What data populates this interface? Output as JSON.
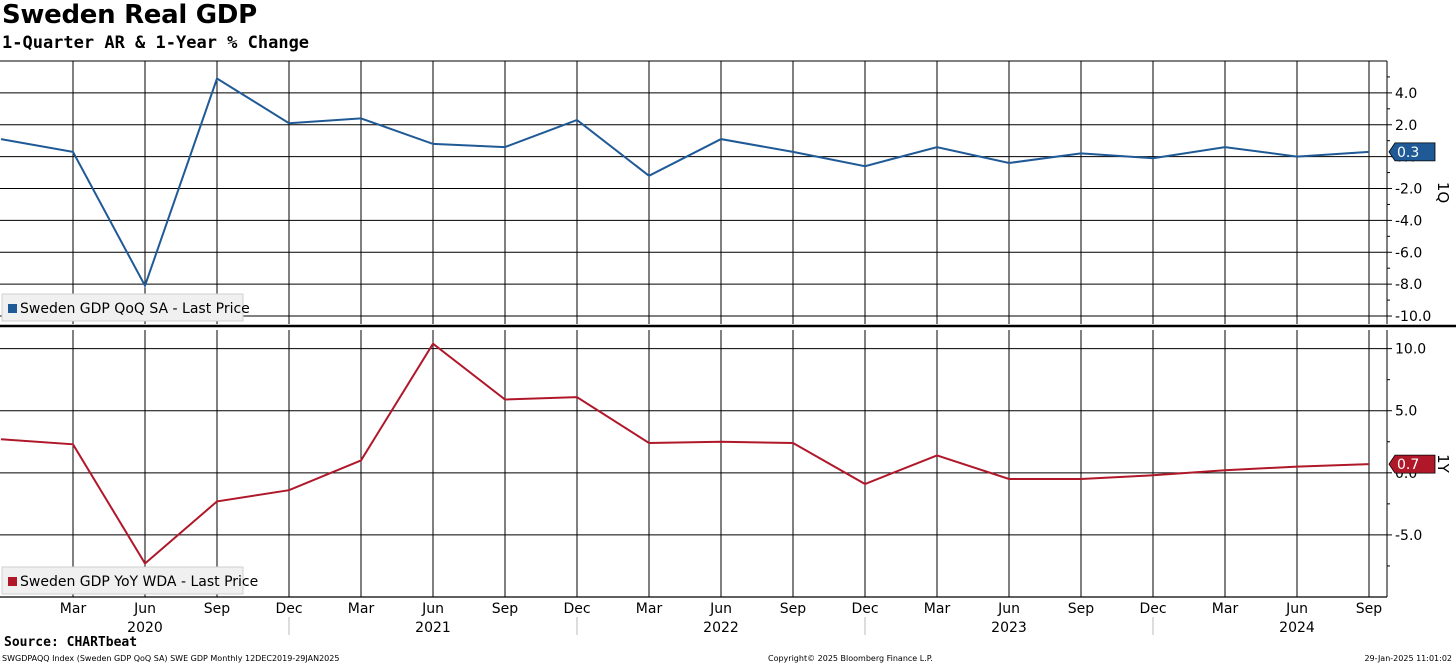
{
  "header": {
    "title": "Sweden Real GDP",
    "subtitle": "1-Quarter AR & 1-Year % Change"
  },
  "footer": {
    "source": "Source: CHARTbeat",
    "left": "SWGDPAQQ Index (Sweden GDP QoQ SA) SWE GDP  Monthly 12DEC2019-29JAN2025",
    "middle": "Copyright© 2025 Bloomberg Finance L.P.",
    "right": "29-Jan-2025 11:01:02"
  },
  "chart_data": [
    {
      "type": "line",
      "axis_title": "1Q",
      "legend": "Sweden GDP QoQ SA - Last Price",
      "legend_placement": "bottom-left",
      "x_month_labels": [
        "Mar",
        "Jun",
        "Sep",
        "Dec",
        "Mar",
        "Jun",
        "Sep",
        "Dec",
        "Mar",
        "Jun",
        "Sep",
        "Dec",
        "Mar",
        "Jun",
        "Sep",
        "Dec",
        "Mar",
        "Jun",
        "Sep"
      ],
      "x_year_labels": [
        "2020",
        "2021",
        "2022",
        "2023",
        "2024"
      ],
      "x": [
        "Dec 2019",
        "Mar 2020",
        "Jun 2020",
        "Sep 2020",
        "Dec 2020",
        "Mar 2021",
        "Jun 2021",
        "Sep 2021",
        "Dec 2021",
        "Mar 2022",
        "Jun 2022",
        "Sep 2022",
        "Dec 2022",
        "Mar 2023",
        "Jun 2023",
        "Sep 2023",
        "Dec 2023",
        "Mar 2024",
        "Jun 2024",
        "Sep 2024"
      ],
      "series": [
        {
          "name": "Sweden GDP QoQ SA - Last Price",
          "color": "#1f5a96",
          "values": [
            1.1,
            0.3,
            -8.1,
            4.9,
            2.1,
            2.4,
            0.8,
            0.6,
            2.3,
            -1.2,
            1.1,
            0.3,
            -0.6,
            0.6,
            -0.4,
            0.2,
            -0.1,
            0.6,
            0.0,
            0.3
          ]
        }
      ],
      "last_value_label": "0.3",
      "ylim": [
        -10.5,
        6.0
      ],
      "y_ticks": [
        4.0,
        2.0,
        0.0,
        -2.0,
        -4.0,
        -6.0,
        -8.0,
        -10.0
      ],
      "y_tick_labels": [
        "4.0",
        "2.0",
        "0.0",
        "-2.0",
        "-4.0",
        "-6.0",
        "-8.0",
        "-10.0"
      ],
      "grid": true
    },
    {
      "type": "line",
      "axis_title": "1Y",
      "legend": "Sweden GDP YoY WDA - Last Price",
      "legend_placement": "bottom-left",
      "x": [
        "Dec 2019",
        "Mar 2020",
        "Jun 2020",
        "Sep 2020",
        "Dec 2020",
        "Mar 2021",
        "Jun 2021",
        "Sep 2021",
        "Dec 2021",
        "Mar 2022",
        "Jun 2022",
        "Sep 2022",
        "Dec 2022",
        "Mar 2023",
        "Jun 2023",
        "Sep 2023",
        "Dec 2023",
        "Mar 2024",
        "Jun 2024",
        "Sep 2024"
      ],
      "series": [
        {
          "name": "Sweden GDP YoY WDA - Last Price",
          "color": "#b0182a",
          "values": [
            2.7,
            2.3,
            -7.3,
            -2.3,
            -1.4,
            1.0,
            10.4,
            5.9,
            6.1,
            2.4,
            2.5,
            2.4,
            -0.9,
            1.4,
            -0.5,
            -0.5,
            -0.2,
            0.2,
            0.5,
            0.7
          ]
        }
      ],
      "last_value_label": "0.7",
      "ylim": [
        -10.0,
        11.5
      ],
      "y_ticks": [
        10.0,
        5.0,
        0.0,
        -5.0
      ],
      "y_tick_labels": [
        "10.0",
        "5.0",
        "0.0",
        "-5.0"
      ],
      "grid": true
    }
  ]
}
